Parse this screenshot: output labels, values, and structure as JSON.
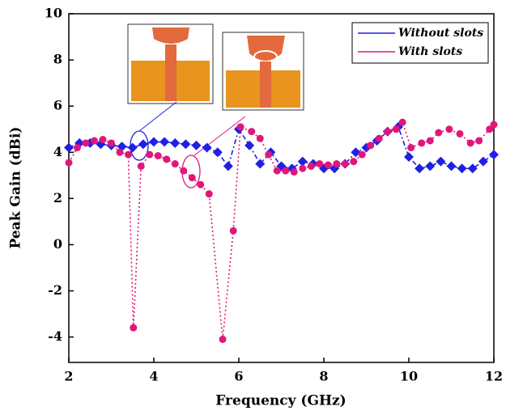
{
  "chart_data": {
    "type": "line",
    "xlabel": "Frequency (GHz)",
    "ylabel": "Peak Gain (dBi)",
    "xlim": [
      2,
      12
    ],
    "xticks": [
      2,
      4,
      6,
      8,
      10,
      12
    ],
    "ylim": [
      -5.1,
      10
    ],
    "yticks": [
      -4,
      -2,
      0,
      2,
      4,
      6,
      8,
      10
    ],
    "legend": "upper right",
    "series": [
      {
        "name": "Without slots",
        "color": "#1f1fe6",
        "marker": "diamond",
        "x": [
          2,
          2.25,
          2.5,
          2.75,
          3,
          3.25,
          3.5,
          3.75,
          4,
          4.25,
          4.5,
          4.75,
          5,
          5.25,
          5.5,
          5.75,
          6,
          6.25,
          6.5,
          6.75,
          7,
          7.25,
          7.5,
          7.75,
          8,
          8.25,
          8.5,
          8.75,
          9,
          9.25,
          9.5,
          9.75,
          10,
          10.25,
          10.5,
          10.75,
          11,
          11.25,
          11.5,
          11.75,
          12
        ],
        "values": [
          4.2,
          4.4,
          4.4,
          4.35,
          4.3,
          4.25,
          4.2,
          4.35,
          4.45,
          4.45,
          4.4,
          4.35,
          4.3,
          4.2,
          4.0,
          3.4,
          5.0,
          4.3,
          3.5,
          4.0,
          3.4,
          3.3,
          3.6,
          3.5,
          3.3,
          3.3,
          3.5,
          4.0,
          4.2,
          4.5,
          4.9,
          5.1,
          3.8,
          3.3,
          3.4,
          3.6,
          3.4,
          3.3,
          3.3,
          3.6,
          3.9
        ]
      },
      {
        "name": "With slots",
        "color": "#e0177a",
        "marker": "circle",
        "x": [
          2,
          2.2,
          2.4,
          2.6,
          2.8,
          3.0,
          3.2,
          3.4,
          3.52,
          3.7,
          3.9,
          4.1,
          4.3,
          4.5,
          4.7,
          4.9,
          5.1,
          5.3,
          5.62,
          5.87,
          6.04,
          6.3,
          6.5,
          6.7,
          6.9,
          7.1,
          7.3,
          7.5,
          7.7,
          7.9,
          8.1,
          8.3,
          8.5,
          8.7,
          8.9,
          9.1,
          9.3,
          9.5,
          9.7,
          9.85,
          10.05,
          10.3,
          10.5,
          10.7,
          10.95,
          11.2,
          11.45,
          11.65,
          11.9,
          12
        ],
        "values": [
          3.55,
          4.2,
          4.4,
          4.5,
          4.55,
          4.4,
          4.0,
          3.9,
          -3.6,
          3.4,
          3.9,
          3.85,
          3.7,
          3.5,
          3.2,
          2.9,
          2.6,
          2.2,
          -4.1,
          0.6,
          5.1,
          4.9,
          4.6,
          3.9,
          3.2,
          3.2,
          3.15,
          3.3,
          3.4,
          3.5,
          3.45,
          3.5,
          3.5,
          3.6,
          3.9,
          4.3,
          4.6,
          4.9,
          5.0,
          5.3,
          4.2,
          4.4,
          4.5,
          4.85,
          5.0,
          4.8,
          4.4,
          4.5,
          5.0,
          5.2
        ]
      }
    ]
  }
}
